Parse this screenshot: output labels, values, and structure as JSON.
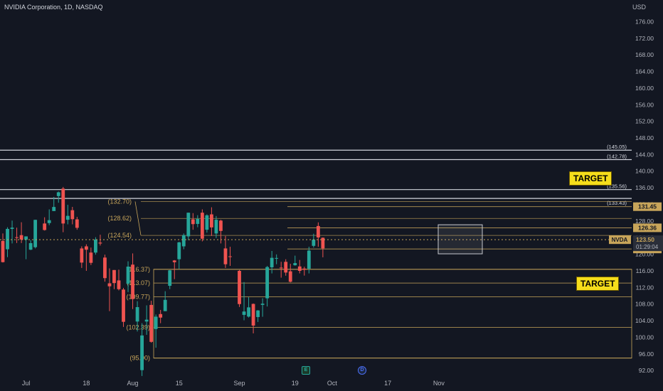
{
  "header": {
    "title": "NVIDIA Corporation, 1D, NASDAQ",
    "currency": "USD"
  },
  "annotations": {
    "target_upper": "TARGET",
    "target_lower": "TARGET"
  },
  "events": {
    "earnings": "E",
    "dividend": "D"
  },
  "colors": {
    "background": "#131722",
    "up": "#26a69a",
    "down": "#ef5350",
    "fib": "#c8a55a",
    "level": "#d1d4dc",
    "axis_text": "#b2b5be",
    "badge": "#c8a55a"
  },
  "chart_data": {
    "type": "candlestick",
    "symbol": "NVDA",
    "timeframe": "1D",
    "ylim": [
      90.5,
      181.2
    ],
    "y_ticks": [
      92,
      96,
      100,
      104,
      108,
      112,
      116,
      120,
      124,
      128,
      132,
      136,
      140,
      144,
      148,
      152,
      156,
      160,
      164,
      168,
      172,
      176
    ],
    "x_ticks": [
      "Jul",
      "18",
      "Aug",
      "15",
      "Sep",
      "19",
      "Oct",
      "17",
      "Nov"
    ],
    "candles": [
      {
        "d": "2024-06-24",
        "o": 123.2,
        "h": 125.0,
        "l": 118.0,
        "c": 118.1
      },
      {
        "d": "2024-06-25",
        "o": 121.2,
        "h": 126.5,
        "l": 119.3,
        "c": 126.1
      },
      {
        "d": "2024-06-26",
        "o": 126.1,
        "h": 128.1,
        "l": 122.6,
        "c": 126.4
      },
      {
        "d": "2024-06-27",
        "o": 124.1,
        "h": 126.4,
        "l": 122.7,
        "c": 123.99
      },
      {
        "d": "2024-06-28",
        "o": 124.6,
        "h": 127.7,
        "l": 122.7,
        "c": 123.54
      },
      {
        "d": "2024-07-01",
        "o": 123.5,
        "h": 124.3,
        "l": 118.8,
        "c": 124.3
      },
      {
        "d": "2024-07-02",
        "o": 121.1,
        "h": 123.4,
        "l": 121.0,
        "c": 122.67
      },
      {
        "d": "2024-07-03",
        "o": 121.7,
        "h": 128.3,
        "l": 121.4,
        "c": 128.28
      },
      {
        "d": "2024-07-05",
        "o": 127.4,
        "h": 128.9,
        "l": 125.7,
        "c": 125.83
      },
      {
        "d": "2024-07-08",
        "o": 127.5,
        "h": 130.8,
        "l": 127.0,
        "c": 128.2
      },
      {
        "d": "2024-07-09",
        "o": 130.4,
        "h": 133.8,
        "l": 130.4,
        "c": 131.38
      },
      {
        "d": "2024-07-10",
        "o": 134.0,
        "h": 135.1,
        "l": 132.4,
        "c": 134.91
      },
      {
        "d": "2024-07-11",
        "o": 135.8,
        "h": 136.2,
        "l": 125.3,
        "c": 127.4
      },
      {
        "d": "2024-07-12",
        "o": 128.3,
        "h": 131.9,
        "l": 127.2,
        "c": 129.24
      },
      {
        "d": "2024-07-15",
        "o": 130.6,
        "h": 131.4,
        "l": 127.2,
        "c": 128.44
      },
      {
        "d": "2024-07-16",
        "o": 128.4,
        "h": 129.0,
        "l": 125.9,
        "c": 126.36
      },
      {
        "d": "2024-07-17",
        "o": 121.4,
        "h": 121.9,
        "l": 116.7,
        "c": 117.99
      },
      {
        "d": "2024-07-18",
        "o": 121.9,
        "h": 122.4,
        "l": 116.0,
        "c": 121.09
      },
      {
        "d": "2024-07-19",
        "o": 120.4,
        "h": 121.6,
        "l": 117.4,
        "c": 117.93
      },
      {
        "d": "2024-07-22",
        "o": 120.4,
        "h": 124.1,
        "l": 119.9,
        "c": 123.54
      },
      {
        "d": "2024-07-23",
        "o": 122.8,
        "h": 124.7,
        "l": 122.1,
        "c": 122.59
      },
      {
        "d": "2024-07-24",
        "o": 119.2,
        "h": 119.9,
        "l": 113.4,
        "c": 114.25
      },
      {
        "d": "2024-07-25",
        "o": 113.0,
        "h": 116.6,
        "l": 106.3,
        "c": 112.28
      },
      {
        "d": "2024-07-26",
        "o": 116.2,
        "h": 116.2,
        "l": 111.6,
        "c": 113.06
      },
      {
        "d": "2024-07-29",
        "o": 113.7,
        "h": 116.3,
        "l": 111.3,
        "c": 111.59
      },
      {
        "d": "2024-07-30",
        "o": 111.5,
        "h": 111.9,
        "l": 102.5,
        "c": 103.73
      },
      {
        "d": "2024-07-31",
        "o": 112.9,
        "h": 118.3,
        "l": 110.9,
        "c": 117.02
      },
      {
        "d": "2024-08-01",
        "o": 117.5,
        "h": 120.2,
        "l": 106.8,
        "c": 109.21
      },
      {
        "d": "2024-08-02",
        "o": 103.8,
        "h": 108.7,
        "l": 101.4,
        "c": 107.27
      },
      {
        "d": "2024-08-05",
        "o": 92.1,
        "h": 103.4,
        "l": 90.69,
        "c": 100.45
      },
      {
        "d": "2024-08-06",
        "o": 103.8,
        "h": 107.7,
        "l": 100.6,
        "c": 104.25
      },
      {
        "d": "2024-08-07",
        "o": 107.8,
        "h": 108.8,
        "l": 98.7,
        "c": 98.91
      },
      {
        "d": "2024-08-08",
        "o": 102.0,
        "h": 105.5,
        "l": 97.5,
        "c": 104.97
      },
      {
        "d": "2024-08-09",
        "o": 105.6,
        "h": 106.6,
        "l": 103.4,
        "c": 104.75
      },
      {
        "d": "2024-08-12",
        "o": 106.3,
        "h": 111.1,
        "l": 106.3,
        "c": 109.02
      },
      {
        "d": "2024-08-13",
        "o": 112.4,
        "h": 116.2,
        "l": 111.6,
        "c": 116.14
      },
      {
        "d": "2024-08-14",
        "o": 118.5,
        "h": 118.6,
        "l": 114.0,
        "c": 118.08
      },
      {
        "d": "2024-08-15",
        "o": 118.8,
        "h": 123.0,
        "l": 116.5,
        "c": 122.86
      },
      {
        "d": "2024-08-16",
        "o": 121.9,
        "h": 125.0,
        "l": 121.2,
        "c": 124.58
      },
      {
        "d": "2024-08-19",
        "o": 124.3,
        "h": 130.0,
        "l": 123.4,
        "c": 130.0
      },
      {
        "d": "2024-08-20",
        "o": 128.4,
        "h": 129.9,
        "l": 125.9,
        "c": 127.25
      },
      {
        "d": "2024-08-21",
        "o": 127.3,
        "h": 129.4,
        "l": 126.5,
        "c": 128.5
      },
      {
        "d": "2024-08-22",
        "o": 130.0,
        "h": 130.8,
        "l": 123.1,
        "c": 123.74
      },
      {
        "d": "2024-08-23",
        "o": 125.9,
        "h": 129.6,
        "l": 125.2,
        "c": 129.37
      },
      {
        "d": "2024-08-26",
        "o": 129.6,
        "h": 131.3,
        "l": 124.4,
        "c": 126.46
      },
      {
        "d": "2024-08-27",
        "o": 125.0,
        "h": 129.2,
        "l": 123.9,
        "c": 128.3
      },
      {
        "d": "2024-08-28",
        "o": 128.1,
        "h": 128.3,
        "l": 122.6,
        "c": 125.61
      },
      {
        "d": "2024-08-29",
        "o": 121.4,
        "h": 124.4,
        "l": 116.7,
        "c": 117.59
      },
      {
        "d": "2024-08-30",
        "o": 119.5,
        "h": 121.8,
        "l": 117.2,
        "c": 119.37
      },
      {
        "d": "2024-09-03",
        "o": 116.0,
        "h": 116.2,
        "l": 107.3,
        "c": 108.0
      },
      {
        "d": "2024-09-04",
        "o": 105.4,
        "h": 113.3,
        "l": 104.1,
        "c": 106.21
      },
      {
        "d": "2024-09-05",
        "o": 104.99,
        "h": 109.65,
        "l": 104.76,
        "c": 107.21
      },
      {
        "d": "2024-09-06",
        "o": 108.04,
        "h": 108.15,
        "l": 100.95,
        "c": 102.83
      },
      {
        "d": "2024-09-09",
        "o": 104.88,
        "h": 106.55,
        "l": 103.69,
        "c": 106.47
      },
      {
        "d": "2024-09-10",
        "o": 107.81,
        "h": 109.4,
        "l": 104.95,
        "c": 108.1
      },
      {
        "d": "2024-09-11",
        "o": 109.39,
        "h": 117.19,
        "l": 107.42,
        "c": 116.91
      },
      {
        "d": "2024-09-12",
        "o": 116.85,
        "h": 120.79,
        "l": 115.38,
        "c": 119.14
      },
      {
        "d": "2024-09-13",
        "o": 119.08,
        "h": 119.96,
        "l": 117.6,
        "c": 119.1
      },
      {
        "d": "2024-09-16",
        "o": 116.79,
        "h": 118.18,
        "l": 114.36,
        "c": 116.78
      },
      {
        "d": "2024-09-17",
        "o": 118.17,
        "h": 118.8,
        "l": 114.83,
        "c": 115.59
      },
      {
        "d": "2024-09-18",
        "o": 115.89,
        "h": 117.7,
        "l": 113.22,
        "c": 113.37
      },
      {
        "d": "2024-09-19",
        "o": 117.35,
        "h": 119.66,
        "l": 117.25,
        "c": 117.87
      },
      {
        "d": "2024-09-20",
        "o": 117.06,
        "h": 118.62,
        "l": 115.39,
        "c": 116.0
      },
      {
        "d": "2024-09-23",
        "o": 116.55,
        "h": 116.99,
        "l": 114.86,
        "c": 116.26
      },
      {
        "d": "2024-09-24",
        "o": 116.52,
        "h": 121.8,
        "l": 115.38,
        "c": 120.87
      },
      {
        "d": "2024-09-25",
        "o": 122.02,
        "h": 124.94,
        "l": 121.61,
        "c": 123.51
      },
      {
        "d": "2024-09-26",
        "o": 126.8,
        "h": 127.67,
        "l": 121.8,
        "c": 124.04
      },
      {
        "d": "2024-09-27",
        "o": 123.97,
        "h": 124.03,
        "l": 119.26,
        "c": 121.4
      }
    ],
    "horizontal_levels": [
      {
        "label": "(145.05)",
        "value": 145.05
      },
      {
        "label": "(142.78)",
        "value": 142.78
      },
      {
        "label": "(135.56)",
        "value": 135.56
      },
      {
        "label": "(133.43)",
        "value": 133.43
      }
    ],
    "fib_levels_upper": [
      {
        "label": "(132.70)",
        "value": 132.7
      },
      {
        "label": "(128.62)",
        "value": 128.62
      },
      {
        "label": "(124.54)",
        "value": 124.54
      }
    ],
    "fib_levels_lower": [
      {
        "label": "(116.37)",
        "value": 116.37
      },
      {
        "label": "(113.07)",
        "value": 113.07
      },
      {
        "label": "(109.77)",
        "value": 109.77
      },
      {
        "label": "(102.39)",
        "value": 102.39
      },
      {
        "label": "(95.00)",
        "value": 95.0
      }
    ],
    "price_badges": [
      {
        "label": "131.45",
        "value": 131.45
      },
      {
        "label": "126.36",
        "value": 126.36
      },
      {
        "label": "121.27",
        "value": 121.27
      }
    ],
    "current": {
      "symbol": "NVDA",
      "price": "123.50",
      "countdown": "01:29:04",
      "value": 123.5
    }
  }
}
